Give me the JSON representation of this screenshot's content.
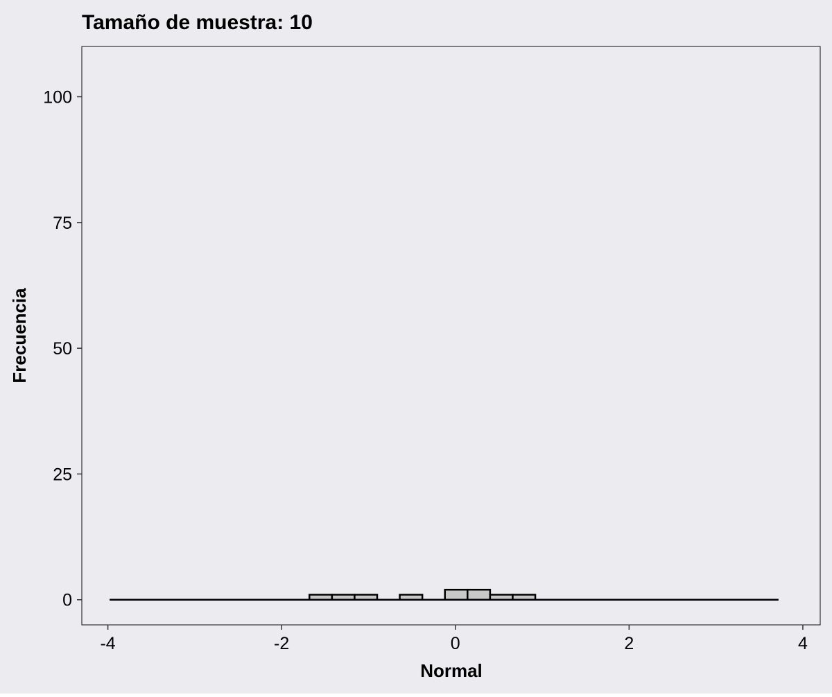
{
  "chart_data": {
    "type": "bar",
    "title": "Tamaño de muestra: 10",
    "xlabel": "Normal",
    "ylabel": "Frecuencia",
    "xlim": [
      -4.3,
      4.2
    ],
    "ylim": [
      -5,
      110
    ],
    "x_ticks": [
      -4,
      -2,
      0,
      2,
      4
    ],
    "x_tick_labels": [
      "-4",
      "-2",
      "0",
      "2",
      "4"
    ],
    "y_ticks": [
      0,
      25,
      50,
      75,
      100
    ],
    "y_tick_labels": [
      "0",
      "25",
      "50",
      "75",
      "100"
    ],
    "grid": false,
    "bin_width": 0.26,
    "bins": [
      {
        "start": -1.68,
        "end": -1.42,
        "value": 1
      },
      {
        "start": -1.42,
        "end": -1.16,
        "value": 1
      },
      {
        "start": -1.16,
        "end": -0.9,
        "value": 1
      },
      {
        "start": -0.64,
        "end": -0.38,
        "value": 1
      },
      {
        "start": -0.12,
        "end": 0.14,
        "value": 2
      },
      {
        "start": 0.14,
        "end": 0.4,
        "value": 2
      },
      {
        "start": 0.4,
        "end": 0.66,
        "value": 1
      },
      {
        "start": 0.66,
        "end": 0.92,
        "value": 1
      }
    ],
    "baseline": {
      "x_start": -3.98,
      "x_end": 3.72,
      "value": 0
    },
    "colors": {
      "page_background": "#ebebf0",
      "bar_fill": "#c8c8c8",
      "bar_stroke": "#000000",
      "panel_border": "#333333",
      "text": "#000000"
    }
  }
}
